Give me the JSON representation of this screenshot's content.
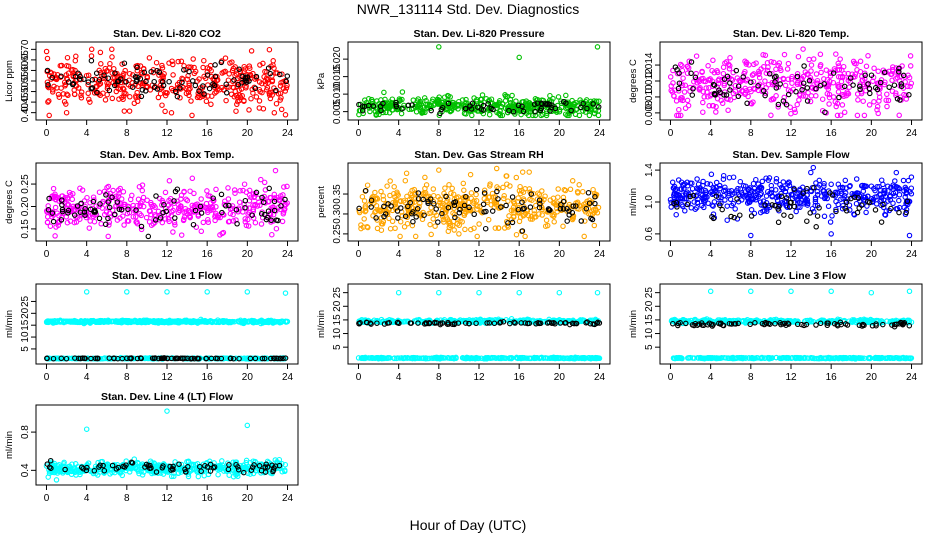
{
  "page": {
    "title": "NWR_131114  Std. Dev. Diagnostics",
    "xlabel": "Hour of Day (UTC)"
  },
  "chart_data": [
    {
      "type": "scatter",
      "title": "Stan. Dev. Li-820 CO2",
      "ylabel": "Licor ppm",
      "xlim": [
        0,
        24
      ],
      "ylim": [
        0.38,
        0.72
      ],
      "yticks": [
        "0.40",
        "0.45",
        "0.50",
        "0.55",
        "0.60",
        "0.65",
        "0.70"
      ],
      "xticks": [
        "0",
        "4",
        "8",
        "12",
        "16",
        "20",
        "24"
      ],
      "series": [
        {
          "color": "#ff0000",
          "mean": 0.54,
          "sd": 0.055,
          "n": 420,
          "outliers": [
            [
              4.5,
              0.7
            ],
            [
              6.5,
              0.7
            ],
            [
              23.8,
              0.39
            ],
            [
              2,
              0.4
            ]
          ]
        },
        {
          "color": "#000000",
          "mean": 0.55,
          "sd": 0.04,
          "n": 90
        }
      ]
    },
    {
      "type": "scatter",
      "title": "Stan. Dev. Li-820 Pressure",
      "ylabel": "kPa",
      "xlim": [
        0,
        24
      ],
      "ylim": [
        0.0035,
        0.024
      ],
      "yticks": [
        "0.005",
        "0.010",
        "0.015",
        "0.020"
      ],
      "xticks": [
        "0",
        "4",
        "8",
        "12",
        "16",
        "20",
        "24"
      ],
      "series": [
        {
          "color": "#00c000",
          "mean": 0.0065,
          "sd": 0.0013,
          "n": 460,
          "outliers": [
            [
              8,
              0.0235
            ],
            [
              16,
              0.0205
            ],
            [
              23.8,
              0.0235
            ]
          ]
        },
        {
          "color": "#000000",
          "mean": 0.0062,
          "sd": 0.0009,
          "n": 60
        }
      ]
    },
    {
      "type": "scatter",
      "title": "Stan. Dev. Li-820 Temp.",
      "ylabel": "degrees C",
      "xlim": [
        0,
        24
      ],
      "ylim": [
        0.0075,
        0.0165
      ],
      "yticks": [
        "0.008",
        "0.010",
        "0.012",
        "0.014"
      ],
      "xticks": [
        "0",
        "4",
        "8",
        "12",
        "16",
        "20",
        "24"
      ],
      "series": [
        {
          "color": "#ff00ff",
          "mean": 0.0115,
          "sd": 0.0017,
          "n": 420,
          "outliers": [
            [
              13.2,
              0.016
            ],
            [
              15.5,
              0.008
            ],
            [
              10,
              0.0077
            ]
          ]
        },
        {
          "color": "#000000",
          "mean": 0.0116,
          "sd": 0.0012,
          "n": 80
        }
      ]
    },
    {
      "type": "scatter",
      "title": "Stan. Dev. Amb. Box Temp.",
      "ylabel": "degrees C",
      "xlim": [
        0,
        24
      ],
      "ylim": [
        0.13,
        0.29
      ],
      "yticks": [
        "0.15",
        "0.20",
        "0.25"
      ],
      "xticks": [
        "0",
        "4",
        "8",
        "12",
        "16",
        "20",
        "24"
      ],
      "series": [
        {
          "color": "#ff00ff",
          "mean": 0.195,
          "sd": 0.025,
          "n": 420,
          "outliers": [
            [
              22.8,
              0.28
            ],
            [
              17.5,
              0.14
            ]
          ]
        },
        {
          "color": "#000000",
          "mean": 0.19,
          "sd": 0.02,
          "n": 80
        }
      ]
    },
    {
      "type": "scatter",
      "title": "Stan. Dev. Gas Stream RH",
      "ylabel": "percent",
      "xlim": [
        0,
        24
      ],
      "ylim": [
        0.24,
        0.42
      ],
      "yticks": [
        "0.25",
        "0.30",
        "0.35"
      ],
      "xticks": [
        "0",
        "4",
        "8",
        "12",
        "16",
        "20",
        "24"
      ],
      "series": [
        {
          "color": "#ffa500",
          "mean": 0.32,
          "sd": 0.03,
          "n": 460,
          "outliers": [
            [
              8,
              0.41
            ],
            [
              17,
              0.405
            ],
            [
              10,
              0.25
            ]
          ]
        },
        {
          "color": "#000000",
          "mean": 0.315,
          "sd": 0.025,
          "n": 90
        }
      ]
    },
    {
      "type": "scatter",
      "title": "Stan. Dev. Sample Flow",
      "ylabel": "ml/min",
      "xlim": [
        0,
        24
      ],
      "ylim": [
        0.55,
        1.45
      ],
      "yticks": [
        "0.6",
        "1.0",
        "1.4"
      ],
      "xticks": [
        "0",
        "4",
        "8",
        "12",
        "16",
        "20",
        "24"
      ],
      "series": [
        {
          "color": "#0000ff",
          "mean": 1.08,
          "sd": 0.11,
          "n": 460,
          "outliers": [
            [
              8,
              0.58
            ],
            [
              16,
              0.6
            ],
            [
              23.8,
              0.58
            ]
          ]
        },
        {
          "color": "#000000",
          "mean": 0.93,
          "sd": 0.1,
          "n": 60
        }
      ]
    },
    {
      "type": "scatter",
      "title": "Stan. Dev. Line 1 Flow",
      "ylabel": "ml/min",
      "xlim": [
        0,
        24
      ],
      "ylim": [
        0,
        31
      ],
      "yticks": [
        "5",
        "10",
        "15",
        "20",
        "25"
      ],
      "xticks": [
        "0",
        "4",
        "8",
        "12",
        "16",
        "20",
        "24"
      ],
      "series": [
        {
          "color": "#00ffff",
          "mean": 16.5,
          "sd": 0.25,
          "n": 500,
          "outliers": [
            [
              4,
              29
            ],
            [
              8,
              29
            ],
            [
              12,
              29
            ],
            [
              16,
              29
            ],
            [
              20,
              29
            ],
            [
              23.8,
              28.5
            ]
          ]
        },
        {
          "color": "#00ffff",
          "mean": 1.0,
          "sd": 0.1,
          "n": 300
        },
        {
          "color": "#000000",
          "mean": 1.0,
          "sd": 0.1,
          "n": 80
        }
      ]
    },
    {
      "type": "scatter",
      "title": "Stan. Dev. Line 2 Flow",
      "ylabel": "ml/min",
      "xlim": [
        0,
        24
      ],
      "ylim": [
        0,
        27
      ],
      "yticks": [
        "5",
        "10",
        "15",
        "20",
        "25"
      ],
      "xticks": [
        "0",
        "4",
        "8",
        "12",
        "16",
        "20",
        "24"
      ],
      "series": [
        {
          "color": "#00ffff",
          "mean": 14.5,
          "sd": 0.3,
          "n": 320,
          "outliers": [
            [
              4,
              25
            ],
            [
              8,
              25
            ],
            [
              12,
              25
            ],
            [
              16,
              25
            ],
            [
              20,
              25
            ],
            [
              23.8,
              25
            ]
          ]
        },
        {
          "color": "#00ffff",
          "mean": 1.0,
          "sd": 0.1,
          "n": 300
        },
        {
          "color": "#000000",
          "mean": 13.8,
          "sd": 0.25,
          "n": 80
        }
      ]
    },
    {
      "type": "scatter",
      "title": "Stan. Dev. Line 3 Flow",
      "ylabel": "ml/min",
      "xlim": [
        0,
        24
      ],
      "ylim": [
        0,
        27
      ],
      "yticks": [
        "5",
        "10",
        "15",
        "20",
        "25"
      ],
      "xticks": [
        "0",
        "4",
        "8",
        "12",
        "16",
        "20",
        "24"
      ],
      "series": [
        {
          "color": "#00ffff",
          "mean": 14.5,
          "sd": 0.3,
          "n": 320,
          "outliers": [
            [
              4,
              25.5
            ],
            [
              8,
              25.5
            ],
            [
              12,
              25.5
            ],
            [
              16,
              25.5
            ],
            [
              20,
              25
            ],
            [
              23.8,
              25.5
            ]
          ]
        },
        {
          "color": "#00ffff",
          "mean": 1.0,
          "sd": 0.1,
          "n": 300
        },
        {
          "color": "#000000",
          "mean": 13.4,
          "sd": 0.3,
          "n": 80
        }
      ]
    },
    {
      "type": "scatter",
      "title": "Stan. Dev. Line 4 (LT) Flow",
      "ylabel": "ml/min",
      "xlim": [
        0,
        24
      ],
      "ylim": [
        0.28,
        1.05
      ],
      "yticks": [
        "0.4",
        "0.8"
      ],
      "xticks": [
        "0",
        "4",
        "8",
        "12",
        "16",
        "20",
        "24"
      ],
      "series": [
        {
          "color": "#00ffff",
          "mean": 0.42,
          "sd": 0.035,
          "n": 480,
          "outliers": [
            [
              4,
              0.83
            ],
            [
              12,
              1.02
            ],
            [
              20,
              0.87
            ],
            [
              1,
              0.3
            ]
          ]
        },
        {
          "color": "#000000",
          "mean": 0.43,
          "sd": 0.03,
          "n": 70
        }
      ]
    }
  ]
}
